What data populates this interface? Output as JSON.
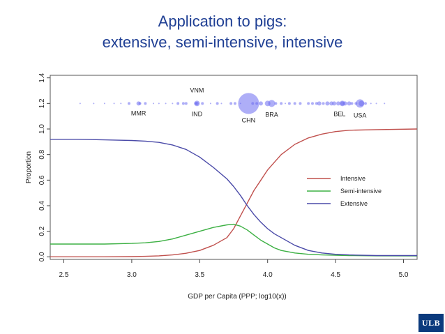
{
  "slide": {
    "title_line1": "Application to pigs:",
    "title_line2": "extensive, semi-intensive, intensive",
    "logo_text": "ULB",
    "title_color": "#1f3f94",
    "logo_color": "#0b3a7d"
  },
  "chart_data": {
    "type": "line",
    "title": "",
    "xlabel": "GDP per Capita (PPP; log10(x))",
    "ylabel": "Proportion",
    "xlim": [
      2.4,
      5.1
    ],
    "ylim": [
      -0.02,
      1.42
    ],
    "xticks": [
      2.5,
      3.0,
      3.5,
      4.0,
      4.5,
      5.0
    ],
    "xtick_labels": [
      "2.5",
      "3.0",
      "3.5",
      "4.0",
      "4.5",
      "5.0"
    ],
    "yticks": [
      0.0,
      0.2,
      0.4,
      0.6,
      0.8,
      1.0,
      1.2,
      1.4
    ],
    "ytick_labels": [
      "0.0",
      "0.2",
      "0.4",
      "0.6",
      "0.8",
      "1.0",
      "1.2",
      "1.4"
    ],
    "grid": false,
    "legend_position": "right",
    "x": [
      2.4,
      2.6,
      2.8,
      3.0,
      3.1,
      3.2,
      3.3,
      3.4,
      3.5,
      3.6,
      3.7,
      3.75,
      3.8,
      3.85,
      3.9,
      3.95,
      4.0,
      4.05,
      4.1,
      4.2,
      4.3,
      4.4,
      4.5,
      4.6,
      4.8,
      5.1
    ],
    "series": [
      {
        "name": "Intensive",
        "color": "#c0504d",
        "values": [
          0.0,
          0.0,
          0.0,
          0.002,
          0.004,
          0.008,
          0.015,
          0.028,
          0.05,
          0.09,
          0.15,
          0.22,
          0.32,
          0.42,
          0.52,
          0.6,
          0.68,
          0.74,
          0.8,
          0.88,
          0.93,
          0.96,
          0.98,
          0.99,
          0.995,
          1.0
        ]
      },
      {
        "name": "Semi-intensive",
        "color": "#3cb043",
        "values": [
          0.1,
          0.1,
          0.1,
          0.105,
          0.11,
          0.12,
          0.14,
          0.17,
          0.2,
          0.23,
          0.25,
          0.255,
          0.24,
          0.21,
          0.17,
          0.13,
          0.1,
          0.07,
          0.05,
          0.03,
          0.02,
          0.015,
          0.012,
          0.01,
          0.008,
          0.007
        ]
      },
      {
        "name": "Extensive",
        "color": "#4a4aa8",
        "values": [
          0.92,
          0.92,
          0.915,
          0.91,
          0.905,
          0.895,
          0.875,
          0.84,
          0.78,
          0.7,
          0.61,
          0.55,
          0.48,
          0.4,
          0.33,
          0.27,
          0.22,
          0.18,
          0.15,
          0.09,
          0.05,
          0.03,
          0.02,
          0.015,
          0.01,
          0.01
        ]
      }
    ],
    "bubbles": {
      "y": 1.2,
      "color": "#6c6cf0",
      "points": [
        {
          "x": 2.62,
          "size": 1
        },
        {
          "x": 2.72,
          "size": 1
        },
        {
          "x": 2.8,
          "size": 1
        },
        {
          "x": 2.87,
          "size": 1
        },
        {
          "x": 2.92,
          "size": 1
        },
        {
          "x": 2.98,
          "size": 2
        },
        {
          "x": 3.06,
          "size": 2
        },
        {
          "x": 3.1,
          "size": 2
        },
        {
          "x": 3.16,
          "size": 1
        },
        {
          "x": 3.2,
          "size": 1
        },
        {
          "x": 3.25,
          "size": 1
        },
        {
          "x": 3.3,
          "size": 1
        },
        {
          "x": 3.34,
          "size": 2
        },
        {
          "x": 3.38,
          "size": 2
        },
        {
          "x": 3.4,
          "size": 2
        },
        {
          "x": 3.47,
          "size": 2
        },
        {
          "x": 3.52,
          "size": 2
        },
        {
          "x": 3.58,
          "size": 1
        },
        {
          "x": 3.63,
          "size": 2
        },
        {
          "x": 3.66,
          "size": 1
        },
        {
          "x": 3.73,
          "size": 2
        },
        {
          "x": 3.76,
          "size": 2
        },
        {
          "x": 3.8,
          "size": 1
        },
        {
          "x": 3.89,
          "size": 2
        },
        {
          "x": 3.92,
          "size": 2
        },
        {
          "x": 3.95,
          "size": 3
        },
        {
          "x": 4.0,
          "size": 4
        },
        {
          "x": 4.06,
          "size": 2
        },
        {
          "x": 4.1,
          "size": 2
        },
        {
          "x": 4.13,
          "size": 1
        },
        {
          "x": 4.16,
          "size": 2
        },
        {
          "x": 4.2,
          "size": 2
        },
        {
          "x": 4.24,
          "size": 2
        },
        {
          "x": 4.3,
          "size": 2
        },
        {
          "x": 4.33,
          "size": 2
        },
        {
          "x": 4.36,
          "size": 2
        },
        {
          "x": 4.38,
          "size": 3
        },
        {
          "x": 4.41,
          "size": 2
        },
        {
          "x": 4.44,
          "size": 3
        },
        {
          "x": 4.47,
          "size": 3
        },
        {
          "x": 4.49,
          "size": 3
        },
        {
          "x": 4.52,
          "size": 3
        },
        {
          "x": 4.55,
          "size": 3
        },
        {
          "x": 4.57,
          "size": 3
        },
        {
          "x": 4.6,
          "size": 3
        },
        {
          "x": 4.62,
          "size": 2
        },
        {
          "x": 4.65,
          "size": 2
        },
        {
          "x": 4.69,
          "size": 4
        },
        {
          "x": 4.72,
          "size": 2
        },
        {
          "x": 4.76,
          "size": 1
        },
        {
          "x": 4.8,
          "size": 1
        },
        {
          "x": 4.86,
          "size": 1
        },
        {
          "x": 3.05,
          "size": 3,
          "label": "MMR"
        },
        {
          "x": 3.48,
          "size": 4,
          "label": "IND"
        },
        {
          "x": 3.48,
          "size": 2.5,
          "label": "VNM"
        },
        {
          "x": 3.86,
          "size": 15,
          "label": "CHN"
        },
        {
          "x": 4.03,
          "size": 5,
          "label": "BRA"
        },
        {
          "x": 4.55,
          "size": 4,
          "label": "BEL"
        },
        {
          "x": 4.68,
          "size": 6,
          "label": "USA"
        }
      ]
    }
  }
}
